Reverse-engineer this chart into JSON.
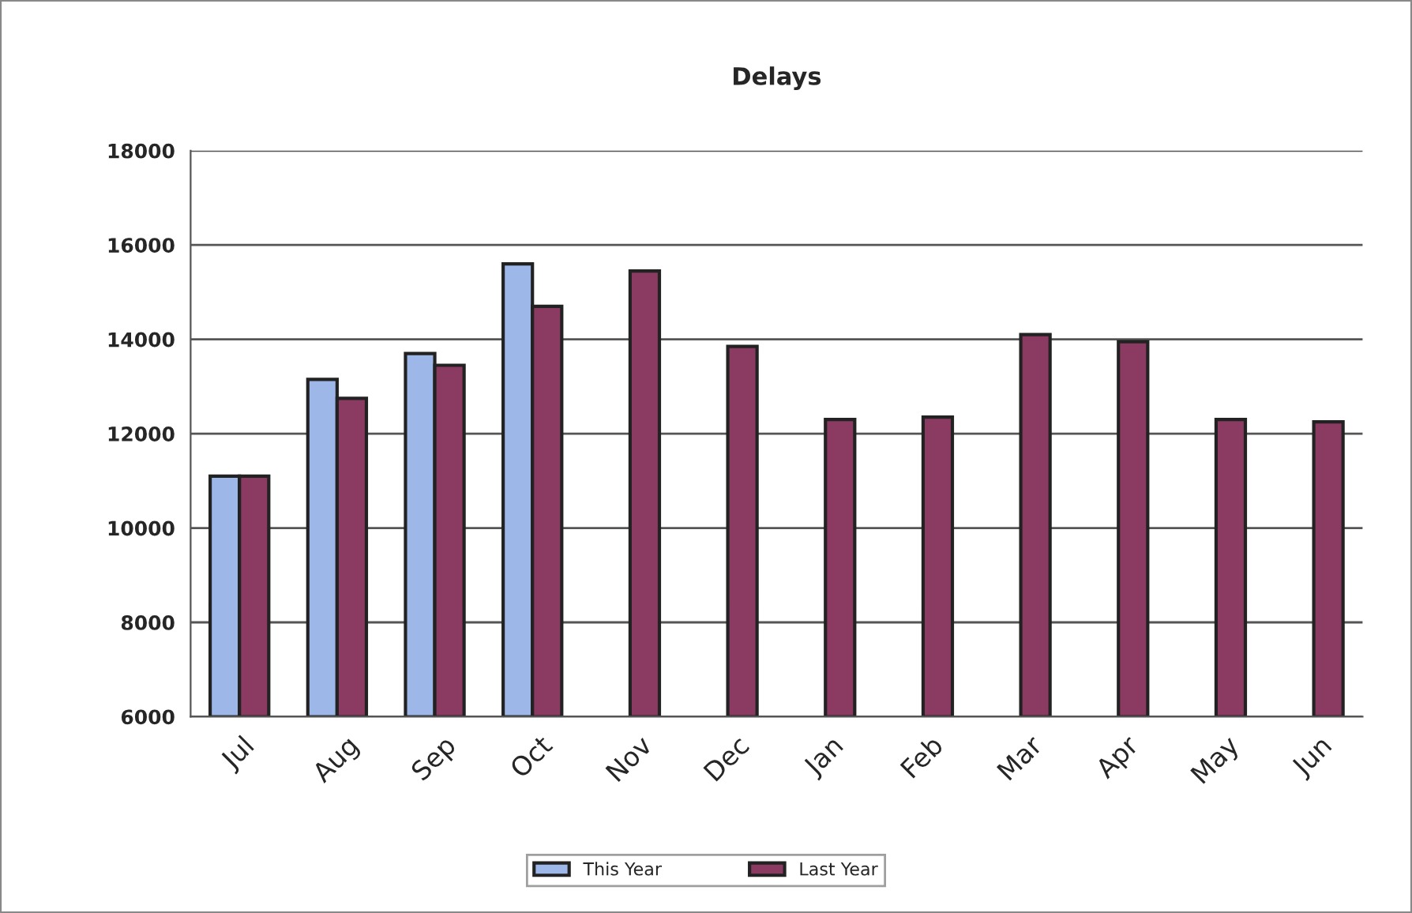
{
  "chart_data": {
    "type": "bar",
    "title": "Delays",
    "categories": [
      "Jul",
      "Aug",
      "Sep",
      "Oct",
      "Nov",
      "Dec",
      "Jan",
      "Feb",
      "Mar",
      "Apr",
      "May",
      "Jun"
    ],
    "series": [
      {
        "name": "This Year",
        "color": "#9db8e8",
        "values": [
          11100,
          13150,
          13700,
          15600,
          null,
          null,
          null,
          null,
          null,
          null,
          null,
          null
        ]
      },
      {
        "name": "Last Year",
        "color": "#8b3a62",
        "values": [
          11100,
          12750,
          13450,
          14700,
          15450,
          13850,
          12300,
          12350,
          14100,
          13950,
          12300,
          12250
        ]
      }
    ],
    "ylim": [
      6000,
      18000
    ],
    "yticks": [
      6000,
      8000,
      10000,
      12000,
      14000,
      16000,
      18000
    ],
    "grid": "y",
    "legend": "bottom"
  }
}
